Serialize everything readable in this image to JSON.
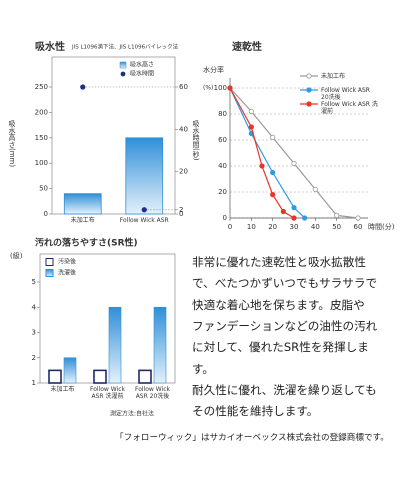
{
  "chart_data": [
    {
      "type": "combo",
      "title": "吸水性",
      "subtitle": "JIS L1096滴下法、JIS L1096バイレック法",
      "categories": [
        "未加工布",
        "Follow Wick ASR"
      ],
      "series": [
        {
          "name": "吸水高さ",
          "kind": "bar",
          "color": "#2f8fd8",
          "values": [
            40,
            150
          ]
        },
        {
          "name": "吸水時間",
          "kind": "point",
          "color": "#1f2f86",
          "axis": "y2",
          "values": [
            60,
            2
          ]
        }
      ],
      "ylabel": "吸水高さ(mm)",
      "y2label": "吸水時間(秒)",
      "ylim": [
        0,
        250
      ],
      "yticks": [
        0,
        50,
        100,
        150,
        200,
        250
      ],
      "y2lim": [
        0,
        60
      ],
      "y2ticks": [
        0,
        2,
        20,
        40,
        60
      ]
    },
    {
      "type": "line",
      "title": "速乾性",
      "ylabel": "水分率",
      "yunit": "(%)",
      "xlabel": "時間(分)",
      "xlim": [
        0,
        60
      ],
      "xticks": [
        0,
        10,
        20,
        30,
        40,
        50,
        60
      ],
      "ylim": [
        0,
        100
      ],
      "yticks": [
        0,
        20,
        40,
        60,
        80,
        100
      ],
      "grid": true,
      "series": [
        {
          "name": "未加工布",
          "color": "#9a9a9a",
          "marker": "open",
          "x": [
            0,
            10,
            20,
            30,
            40,
            50,
            60
          ],
          "values": [
            100,
            82,
            62,
            42,
            22,
            2,
            0
          ]
        },
        {
          "name": "Follow Wick ASR 20洗後",
          "color": "#2f9be0",
          "marker": "filled",
          "x": [
            0,
            10,
            20,
            30,
            35
          ],
          "values": [
            100,
            65,
            35,
            8,
            0
          ]
        },
        {
          "name": "Follow Wick ASR 洗濯前",
          "color": "#e8352b",
          "marker": "filled",
          "x": [
            0,
            10,
            15,
            20,
            25,
            30
          ],
          "values": [
            100,
            70,
            40,
            18,
            5,
            0
          ]
        }
      ]
    },
    {
      "type": "bar",
      "title": "汚れの落ちやすさ(SR性)",
      "ylabel": "(級)",
      "categories": [
        "未加工布",
        "Follow Wick ASR 洗濯前",
        "Follow Wick ASR 20洗後"
      ],
      "series": [
        {
          "name": "汚染後",
          "color": "#1f2a6b",
          "style": "outline",
          "values": [
            1.5,
            1.5,
            1.5
          ]
        },
        {
          "name": "洗濯後",
          "color": "#2f8fd8",
          "style": "gradient",
          "values": [
            2,
            4,
            4
          ]
        }
      ],
      "ylim": [
        1,
        5
      ],
      "yticks": [
        1,
        2,
        3,
        4,
        5
      ],
      "note": "測定方法:自社法"
    }
  ],
  "description": {
    "lines": [
      "非常に優れた速乾性と吸水拡散性",
      "で、べたつかずいつでもサラサラで",
      "快適な着心地を保ちます。皮脂や",
      "ファンデーションなどの油性の汚れ",
      "に対して、優れたSR性を発揮しま",
      "す。",
      "耐久性に優れ、洗濯を繰り返しても",
      "その性能を維持します。"
    ]
  },
  "footnote": "「フォローウィック」はサカイオーベックス株式会社の登録商標です。"
}
